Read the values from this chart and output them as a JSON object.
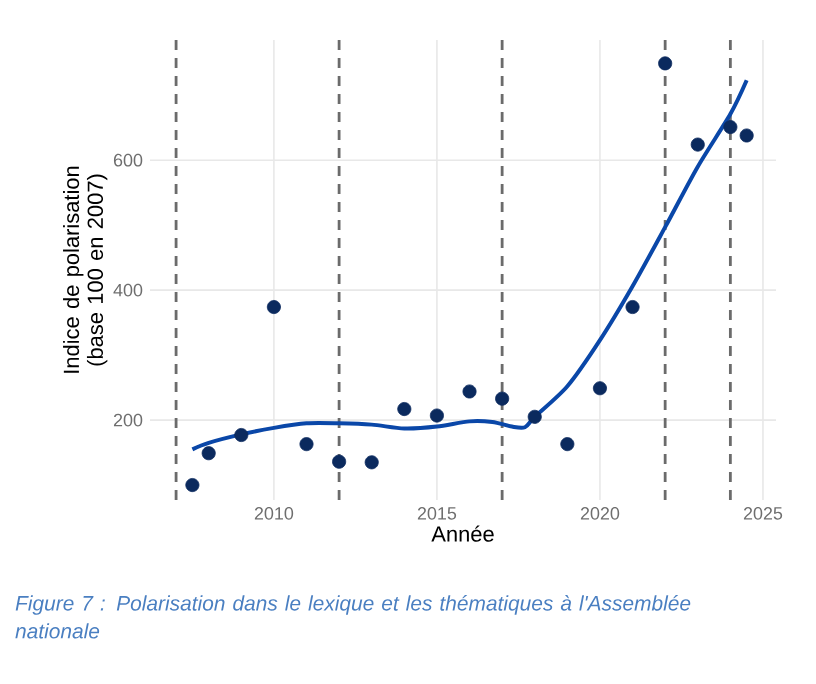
{
  "chart_data": {
    "type": "scatter",
    "xlabel": "Année",
    "ylabel": "Indice de polarisation (base 100 en 2007)",
    "xlim": [
      2006.2,
      2025.4
    ],
    "ylim": [
      77,
      785
    ],
    "xticks": [
      2010,
      2015,
      2020,
      2025
    ],
    "yticks": [
      200,
      400,
      600
    ],
    "grid": true,
    "series": [
      {
        "type": "scatter",
        "color": "#0b2a5e",
        "marker": "circle",
        "x": [
          2007.5,
          2008,
          2009,
          2010,
          2011,
          2012,
          2013,
          2014,
          2015,
          2016,
          2017,
          2018,
          2019,
          2020,
          2021,
          2022,
          2023,
          2024,
          2024.5
        ],
        "values": [
          100,
          149,
          177,
          374,
          163,
          136,
          135,
          217,
          207,
          244,
          233,
          205,
          163,
          249,
          374,
          749,
          624,
          651,
          638
        ]
      },
      {
        "type": "line",
        "color": "#0a47a8",
        "x": [
          2007.5,
          2008,
          2009,
          2010,
          2011,
          2012,
          2013,
          2014,
          2015,
          2016,
          2016.7,
          2017.3,
          2017.7,
          2018,
          2019,
          2020,
          2021,
          2022,
          2023,
          2024,
          2024.5
        ],
        "values": [
          155,
          165,
          178,
          188,
          195,
          195,
          193,
          187,
          190,
          198,
          197,
          190,
          189,
          205,
          252,
          323,
          406,
          497,
          590,
          671,
          723
        ]
      }
    ],
    "ref_lines": [
      {
        "axis": "x",
        "value": 2007,
        "color": "#6b6b6b",
        "line_style": "dashed"
      },
      {
        "axis": "x",
        "value": 2012,
        "color": "#6b6b6b",
        "line_style": "dashed"
      },
      {
        "axis": "x",
        "value": 2017,
        "color": "#6b6b6b",
        "line_style": "dashed"
      },
      {
        "axis": "x",
        "value": 2022,
        "color": "#6b6b6b",
        "line_style": "dashed"
      },
      {
        "axis": "x",
        "value": 2024,
        "color": "#6b6b6b",
        "line_style": "dashed"
      }
    ],
    "annotations": [
      "Figure 7 : Polarisation dans le lexique et les thématiques à l'Assemblée nationale"
    ]
  }
}
